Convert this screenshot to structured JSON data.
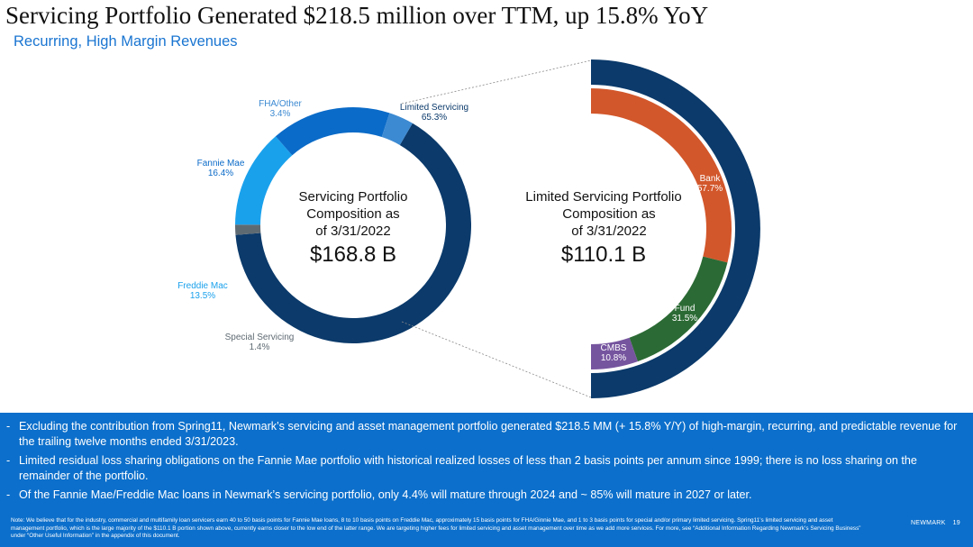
{
  "header": {
    "title": "Servicing Portfolio Generated $218.5 million over TTM, up 15.8% YoY",
    "subtitle": "Recurring, High Margin Revenues"
  },
  "chart_data": [
    {
      "type": "pie",
      "center_label": "Servicing Portfolio Composition as of 3/31/2022",
      "center_lines": [
        "Servicing Portfolio",
        "Composition as",
        "of 3/31/2022"
      ],
      "center_value": "$168.8 B",
      "slices": [
        {
          "name": "Limited Servicing",
          "value": 65.3,
          "label": "65.3%",
          "color": "#0b3a6b"
        },
        {
          "name": "Special Servicing",
          "value": 1.4,
          "label": "1.4%",
          "color": "#5e6a72"
        },
        {
          "name": "Freddie Mac",
          "value": 13.5,
          "label": "13.5%",
          "color": "#1aa1ec"
        },
        {
          "name": "Fannie Mae",
          "value": 16.4,
          "label": "16.4%",
          "color": "#0b6bc8"
        },
        {
          "name": "FHA/Other",
          "value": 3.4,
          "label": "3.4%",
          "color": "#3c8ad2"
        }
      ]
    },
    {
      "type": "pie",
      "center_label": "Limited Servicing Portfolio Composition as of 3/31/2022",
      "center_lines": [
        "Limited Servicing Portfolio",
        "Composition as",
        "of 3/31/2022"
      ],
      "center_value": "$110.1 B",
      "slices": [
        {
          "name": "Bank",
          "value": 57.7,
          "label": "57.7%",
          "color": "#d2572b"
        },
        {
          "name": "Fund",
          "value": 31.5,
          "label": "31.5%",
          "color": "#2b6a34"
        },
        {
          "name": "CMBS",
          "value": 10.8,
          "label": "10.8%",
          "color": "#76559f"
        }
      ]
    }
  ],
  "bullets": [
    "Excluding the contribution from Spring11, Newmark’s servicing and asset management portfolio generated $218.5 MM (+ 15.8% Y/Y) of high-margin, recurring, and predictable revenue for the trailing twelve months ended 3/31/2023.",
    "Limited residual loss sharing obligations on the Fannie Mae portfolio with historical realized losses of less than 2 basis points per annum since 1999; there is no loss sharing on the remainder of the portfolio.",
    "Of the Fannie Mae/Freddie Mac loans in Newmark’s servicing portfolio, only 4.4% will mature through 2024 and ~ 85% will mature in 2027 or later."
  ],
  "note": "Note: We believe that for the industry, commercial and multifamily loan servicers earn 40 to 50 basis points for Fannie Mae loans, 8 to 10 basis points on Freddie Mac, approximately 15 basis points for FHA/Ginnie Mae, and 1 to 3 basis points for special and/or primary limited servicing. Spring11’s limited servicing and asset management portfolio, which is the large majority of the $110.1 B portion shown above, currently earns closer to the low end of the latter range. We are targeting higher fees for limited servicing and asset management over time as we add more services. For more, see “Additional Information Regarding Newmark’s Servicing Business” under “Other Useful Information” in the appendix of this document.",
  "footer": {
    "brand": "NEWMARK",
    "page_number": "19"
  }
}
